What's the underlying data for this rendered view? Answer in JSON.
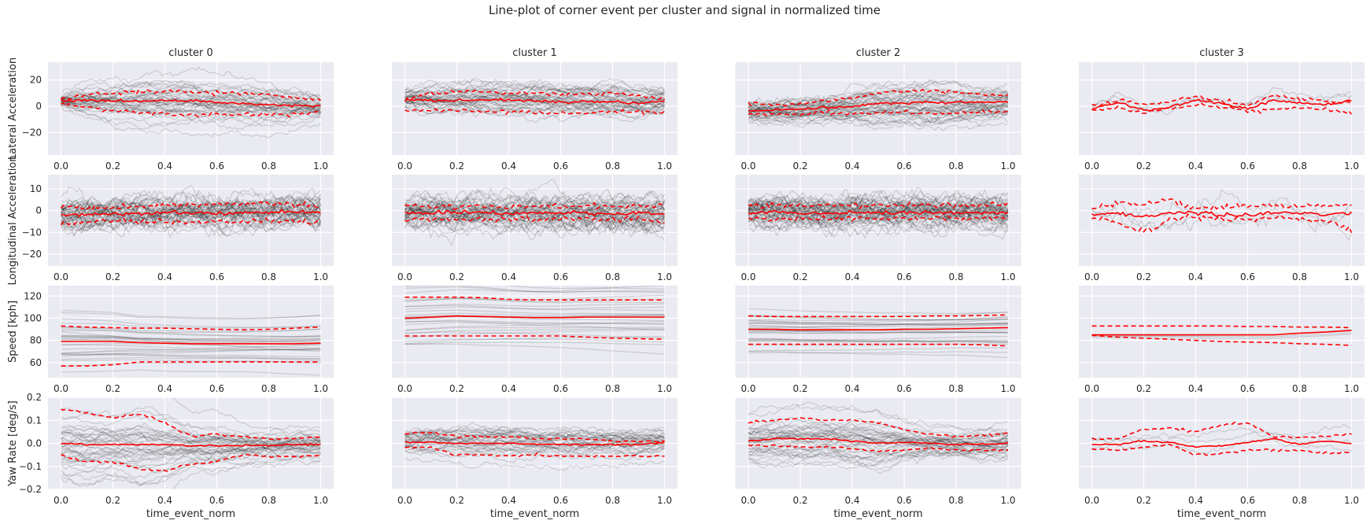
{
  "chart_data": {
    "type": "line",
    "title": "Line-plot of corner event per cluster and signal in normalized time",
    "xlabel": "time_event_norm",
    "x": [
      0.0,
      0.1,
      0.2,
      0.3,
      0.4,
      0.5,
      0.6,
      0.7,
      0.8,
      0.9,
      1.0
    ],
    "xlim": [
      -0.05,
      1.05
    ],
    "xticks": [
      "0.0",
      "0.2",
      "0.4",
      "0.6",
      "0.8",
      "1.0"
    ],
    "grid": true,
    "colors": {
      "background": "#eaeaf2",
      "grid": "#ffffff",
      "mean": "#ff0000",
      "band": "#ff0000",
      "trace": "#000000"
    },
    "clusters": [
      "cluster 0",
      "cluster 1",
      "cluster 2",
      "cluster 3"
    ],
    "signals": [
      {
        "ylabel": "Lateral Acceleration",
        "ylim": [
          -37.2,
          33.6
        ],
        "yticks": [
          20,
          0,
          -20
        ],
        "ytick_labels": [
          "20",
          "0",
          "−20"
        ],
        "panels": [
          {
            "trace_count": 40,
            "mean": [
              4,
              4.5,
              4,
              4,
              4.5,
              4,
              3,
              2,
              1,
              0.5,
              0
            ],
            "upper": [
              5,
              9,
              10,
              11,
              11,
              11,
              10,
              10,
              9,
              6,
              5
            ],
            "lower": [
              2,
              -1,
              -3,
              -5,
              -6,
              -7,
              -7,
              -6,
              -6,
              -6,
              -4
            ]
          },
          {
            "trace_count": 40,
            "mean": [
              5,
              4,
              4.5,
              5,
              4.5,
              4,
              3,
              3.5,
              3.5,
              2,
              4
            ],
            "upper": [
              5,
              10,
              11,
              11,
              10,
              10,
              9,
              9,
              10,
              8,
              5
            ],
            "lower": [
              -3,
              -3,
              -3,
              -4,
              -4,
              -5,
              -5,
              -5,
              -4,
              -4,
              -5
            ]
          },
          {
            "trace_count": 45,
            "mean": [
              -3,
              -3,
              -2,
              -1,
              0,
              2,
              2.5,
              3,
              3,
              3,
              4
            ],
            "upper": [
              2,
              1,
              2,
              4,
              6,
              10,
              11,
              12,
              11,
              9,
              8
            ],
            "lower": [
              -5,
              -6,
              -6,
              -5,
              -6,
              -5,
              -5,
              -6,
              -5,
              -4,
              -4
            ]
          },
          {
            "trace_count": 3,
            "mean": [
              -2,
              3,
              -3,
              -1,
              4.5,
              2,
              -2,
              4.5,
              2.5,
              1,
              4.5
            ],
            "upper": [
              1,
              4,
              2,
              3,
              8,
              4,
              1,
              8,
              6,
              4,
              3
            ],
            "lower": [
              -3,
              -1,
              -5,
              -2,
              1,
              0,
              -4,
              -2,
              -1,
              -2,
              -5
            ]
          }
        ]
      },
      {
        "ylabel": "Longitudinal Acceleration",
        "ylim": [
          -25.5,
          16.6
        ],
        "yticks": [
          10,
          0,
          -10,
          -20
        ],
        "ytick_labels": [
          "10",
          "0",
          "−10",
          "−20"
        ],
        "panels": [
          {
            "trace_count": 45,
            "mean": [
              -2,
              -2,
              -2,
              -1,
              -1,
              -1,
              -1.5,
              -1,
              -1,
              -0.5,
              -1
            ],
            "upper": [
              2,
              1.5,
              1.5,
              2,
              2.5,
              3,
              3,
              3,
              3.5,
              2.5,
              2
            ],
            "lower": [
              -6,
              -5.5,
              -5,
              -5,
              -5,
              -5,
              -5,
              -5,
              -4.5,
              -5,
              -5
            ]
          },
          {
            "trace_count": 45,
            "mean": [
              -1,
              -1,
              -1,
              -1,
              -1,
              -1,
              -1,
              -1,
              -1.5,
              -1,
              -1.5
            ],
            "upper": [
              2,
              2,
              2,
              2,
              2,
              2,
              2,
              2,
              2,
              2,
              2
            ],
            "lower": [
              -4,
              -4,
              -4,
              -4,
              -4,
              -4,
              -4,
              -4,
              -4,
              -4,
              -5
            ]
          },
          {
            "trace_count": 50,
            "mean": [
              -1,
              -0.5,
              -1,
              -1,
              -1,
              -1,
              -1,
              -1,
              -1,
              -1,
              -1
            ],
            "upper": [
              2.5,
              2.5,
              2.5,
              2.5,
              2.5,
              2.5,
              2.5,
              2.5,
              2.5,
              2.5,
              2.5
            ],
            "lower": [
              -3.5,
              -3.5,
              -3.5,
              -3.5,
              -3.5,
              -3.5,
              -3.5,
              -3.5,
              -3.5,
              -3.5,
              -3.5
            ]
          },
          {
            "trace_count": 3,
            "mean": [
              -2,
              -1,
              -3,
              -1,
              -1,
              -2,
              -2,
              -1,
              -1,
              -2,
              -1
            ],
            "upper": [
              1,
              4,
              3,
              5,
              1,
              2,
              2,
              2,
              2,
              2,
              3
            ],
            "lower": [
              -3,
              -6,
              -10,
              -4,
              -3,
              -4,
              -4,
              -3,
              -4,
              -5,
              -9
            ]
          }
        ]
      },
      {
        "ylabel": "Speed [kph]",
        "ylim": [
          46.4,
          129.4
        ],
        "yticks": [
          120,
          100,
          80,
          60
        ],
        "ytick_labels": [
          "120",
          "100",
          "80",
          "60"
        ],
        "panels": [
          {
            "trace_count": 30,
            "mean": [
              79,
              79,
              79,
              78,
              77.5,
              77,
              77,
              77,
              77,
              77,
              77.5
            ],
            "upper": [
              93,
              92,
              91.5,
              91,
              91,
              90.5,
              90,
              89.5,
              90,
              91,
              92
            ],
            "lower": [
              57,
              57,
              58,
              60.5,
              60.5,
              60.5,
              60.5,
              60.5,
              60.5,
              60.5,
              60.5
            ]
          },
          {
            "trace_count": 30,
            "mean": [
              100,
              101,
              102,
              101.5,
              101,
              100.5,
              100.5,
              101,
              101,
              101,
              101
            ],
            "upper": [
              119,
              119,
              119,
              118.5,
              117,
              116.5,
              116.5,
              116.5,
              116.5,
              116.5,
              116.5
            ],
            "lower": [
              84,
              84,
              84,
              84,
              84,
              84,
              84,
              83,
              82,
              81.5,
              81
            ]
          },
          {
            "trace_count": 30,
            "mean": [
              90,
              90,
              89.5,
              89.5,
              89.5,
              89.5,
              90,
              90,
              90.5,
              91,
              91.5
            ],
            "upper": [
              102,
              101.5,
              101.5,
              101.5,
              101.5,
              101.5,
              101.5,
              102,
              102,
              102.5,
              103
            ],
            "lower": [
              76.5,
              76.5,
              76.5,
              76.5,
              76.5,
              76.5,
              76.5,
              76.5,
              76.5,
              76,
              75
            ]
          },
          {
            "trace_count": 3,
            "mean": [
              85,
              85,
              85,
              85,
              85,
              85,
              85,
              85,
              86.5,
              87.5,
              89
            ],
            "upper": [
              93,
              93,
              93,
              93,
              93,
              93,
              92.5,
              92.5,
              92,
              92,
              91.5
            ],
            "lower": [
              84.5,
              83,
              82,
              81,
              80,
              79,
              78.5,
              78,
              77,
              76.5,
              75.5
            ]
          }
        ]
      },
      {
        "ylabel": "Yaw Rate [deg/s]",
        "ylim": [
          -0.2,
          0.2
        ],
        "yticks": [
          0.2,
          0.1,
          0.0,
          -0.1,
          -0.2
        ],
        "ytick_labels": [
          "0.2",
          "0.1",
          "0.0",
          "−0.1",
          "−0.2"
        ],
        "panels": [
          {
            "trace_count": 40,
            "mean": [
              0,
              -0.005,
              -0.005,
              -0.005,
              -0.005,
              -0.01,
              -0.01,
              -0.01,
              -0.01,
              -0.005,
              -0.005
            ],
            "upper": [
              0.15,
              0.13,
              0.11,
              0.13,
              0.09,
              0.03,
              0.04,
              0.03,
              0.02,
              0.02,
              0.03
            ],
            "lower": [
              -0.05,
              -0.08,
              -0.08,
              -0.11,
              -0.12,
              -0.09,
              -0.08,
              -0.05,
              -0.055,
              -0.06,
              -0.05
            ]
          },
          {
            "trace_count": 35,
            "mean": [
              0.005,
              0.005,
              0,
              0,
              0,
              -0.005,
              -0.005,
              -0.005,
              -0.005,
              -0.005,
              0.005
            ],
            "upper": [
              0.04,
              0.05,
              0.03,
              0.03,
              0.03,
              0.02,
              0.02,
              0.02,
              0.01,
              0.01,
              0.01
            ],
            "lower": [
              -0.015,
              -0.02,
              -0.05,
              -0.05,
              -0.055,
              -0.05,
              -0.055,
              -0.055,
              -0.055,
              -0.055,
              -0.055
            ]
          },
          {
            "trace_count": 40,
            "mean": [
              0.01,
              0.02,
              0.02,
              0.02,
              0.01,
              0,
              0.005,
              0,
              -0.005,
              -0.005,
              0
            ],
            "upper": [
              0.09,
              0.1,
              0.11,
              0.1,
              0.1,
              0.09,
              0.06,
              0.04,
              0.03,
              0.035,
              0.045
            ],
            "lower": [
              -0.01,
              -0.01,
              -0.015,
              -0.015,
              -0.025,
              -0.035,
              -0.03,
              -0.02,
              -0.03,
              -0.03,
              -0.03
            ]
          },
          {
            "trace_count": 3,
            "mean": [
              -0.005,
              -0.005,
              0.01,
              0.005,
              -0.015,
              -0.01,
              0.005,
              0.02,
              -0.005,
              0.01,
              0
            ],
            "upper": [
              0.02,
              0.02,
              0.06,
              0.065,
              0.05,
              0.08,
              0.09,
              0.03,
              0.025,
              0.03,
              0.04
            ],
            "lower": [
              -0.025,
              -0.03,
              -0.015,
              -0.005,
              -0.05,
              -0.045,
              -0.03,
              -0.03,
              -0.03,
              -0.04,
              -0.04
            ]
          }
        ]
      }
    ]
  }
}
